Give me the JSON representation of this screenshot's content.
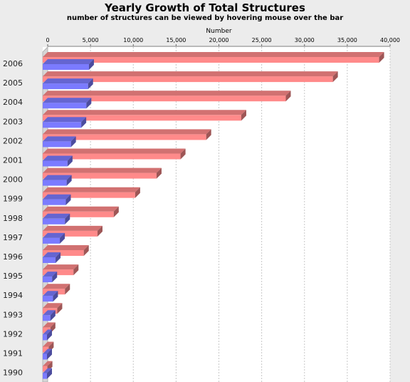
{
  "chart_data": {
    "type": "bar",
    "orientation": "horizontal",
    "title": "Yearly Growth of Total Structures",
    "subtitle": "number of structures can be viewed by hovering mouse over the bar",
    "xlabel": "Number",
    "ylabel": "",
    "xlim": [
      0,
      40000
    ],
    "x_ticks": [
      "0",
      "5,000",
      "10,000",
      "15,000",
      "20,000",
      "25,000",
      "30,000",
      "35,000",
      "40,000"
    ],
    "grid": true,
    "categories": [
      "2006",
      "2005",
      "2004",
      "2003",
      "2002",
      "2001",
      "2000",
      "1999",
      "1998",
      "1997",
      "1996",
      "1995",
      "1994",
      "1993",
      "1992",
      "1991",
      "1990"
    ],
    "series": [
      {
        "color": "#ff8a8a",
        "values": [
          39300,
          33900,
          28400,
          23200,
          19100,
          16100,
          13300,
          10800,
          8300,
          6400,
          4800,
          3600,
          2600,
          1700,
          900,
          700,
          550
        ]
      },
      {
        "color": "#7b7bff",
        "values": [
          5400,
          5300,
          5100,
          4500,
          3300,
          2900,
          2800,
          2700,
          2600,
          2000,
          1500,
          1100,
          1200,
          900,
          500,
          500,
          500
        ]
      }
    ]
  }
}
